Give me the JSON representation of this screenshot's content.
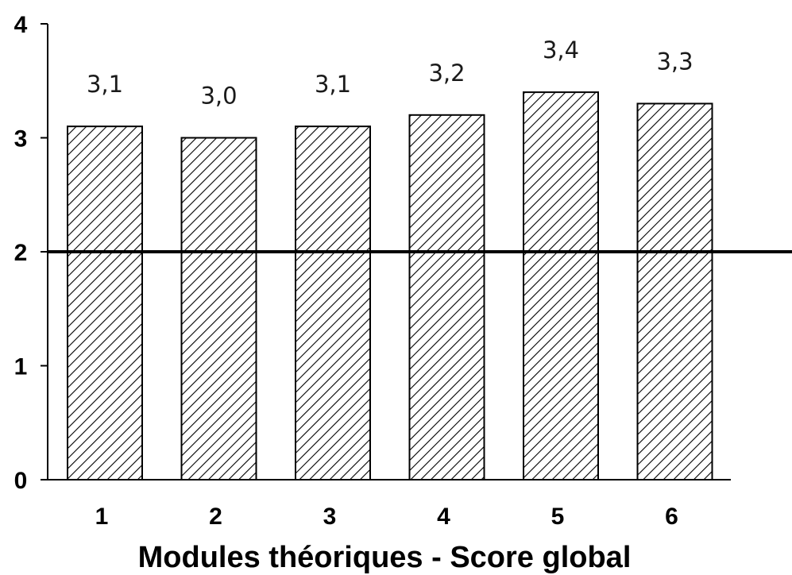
{
  "chart_data": {
    "type": "bar",
    "title": "",
    "xlabel": "Modules théoriques - Score global",
    "ylabel": "",
    "categories": [
      "1",
      "2",
      "3",
      "4",
      "5",
      "6"
    ],
    "values": [
      3.1,
      3.0,
      3.1,
      3.2,
      3.4,
      3.3
    ],
    "value_labels": [
      "3,1",
      "3,0",
      "3,1",
      "3,2",
      "3,4",
      "3,3"
    ],
    "ylim": [
      0,
      4
    ],
    "yticks": [
      "0",
      "1",
      "2",
      "3",
      "4"
    ],
    "reference_line": 2,
    "grid": false,
    "bar_fill": "diagonal-hatch",
    "colors": {
      "bar_stroke": "#000000",
      "hatch": "#000000",
      "background": "#ffffff"
    }
  }
}
